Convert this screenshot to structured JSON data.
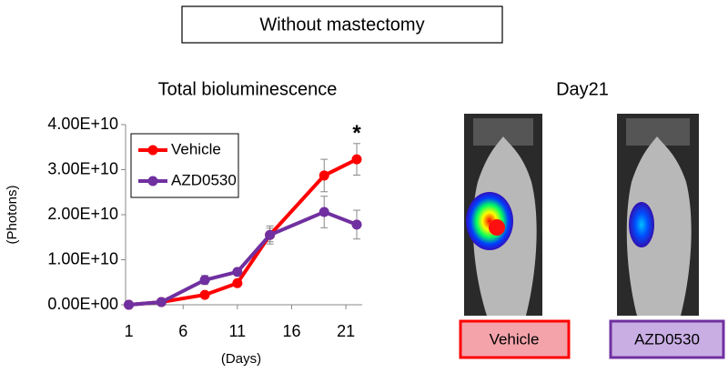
{
  "header": "Without mastectomy",
  "image_panel": {
    "title": "Day21",
    "labels": [
      "Vehicle",
      "AZD0530"
    ]
  },
  "chart_data": {
    "type": "line",
    "title": "Total bioluminescence",
    "x_label": "(Days)",
    "y_label": "(Photons)",
    "x": [
      1,
      4,
      8,
      11,
      14,
      19,
      22
    ],
    "series": [
      {
        "name": "Vehicle",
        "color": "#ff0000",
        "values": [
          0,
          600000000,
          2200000000,
          4800000000,
          15500000000,
          28700000000,
          32300000000
        ],
        "errors": [
          0,
          0,
          200000000,
          200000000,
          1500000000,
          3600000000,
          3500000000
        ]
      },
      {
        "name": "AZD0530",
        "color": "#7030a0",
        "values": [
          0,
          600000000,
          5500000000,
          7300000000,
          15500000000,
          20600000000,
          17800000000
        ],
        "errors": [
          0,
          0,
          1000000000,
          500000000,
          2000000000,
          3500000000,
          3200000000
        ]
      }
    ],
    "xlim": [
      0.7,
      22.5
    ],
    "ylim": [
      0,
      40000000000
    ],
    "xticks": [
      1,
      6,
      11,
      16,
      21
    ],
    "yticks": [
      {
        "value": 0,
        "label": "0.00E+00"
      },
      {
        "value": 10000000000,
        "label": "1.00E+10"
      },
      {
        "value": 20000000000,
        "label": "2.00E+10"
      },
      {
        "value": 30000000000,
        "label": "3.00E+10"
      },
      {
        "value": 40000000000,
        "label": "4.00E+10"
      }
    ],
    "annotation": {
      "text": "*",
      "x": 22
    },
    "legend": "upper left"
  }
}
